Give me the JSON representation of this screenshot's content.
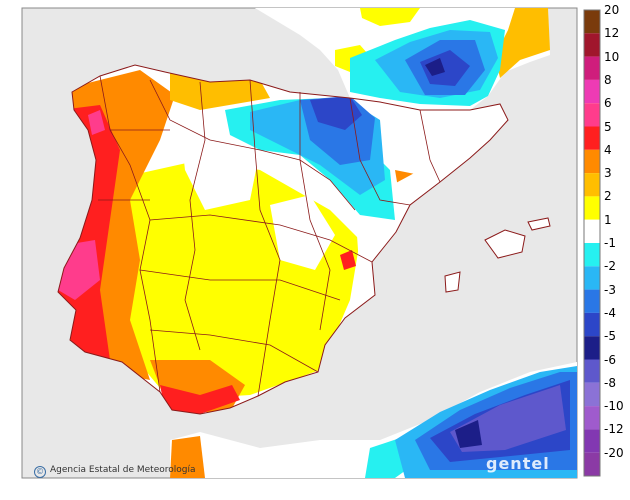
{
  "legend": {
    "bins": [
      {
        "label": "20",
        "color": "#7a3b0c"
      },
      {
        "label": "12",
        "color": "#a0162c"
      },
      {
        "label": "10",
        "color": "#cf1d7c"
      },
      {
        "label": "8",
        "color": "#ee3bb4"
      },
      {
        "label": "6",
        "color": "#ff3c8c"
      },
      {
        "label": "5",
        "color": "#ff1f1f"
      },
      {
        "label": "4",
        "color": "#ff8a00"
      },
      {
        "label": "3",
        "color": "#ffbe00"
      },
      {
        "label": "2",
        "color": "#ffff00"
      },
      {
        "label": "1",
        "color": "#ffffff"
      },
      {
        "label": "-1",
        "color": "#26f0f0"
      },
      {
        "label": "-2",
        "color": "#2ab7f5"
      },
      {
        "label": "-3",
        "color": "#2a77e6"
      },
      {
        "label": "-4",
        "color": "#2c46c8"
      },
      {
        "label": "-5",
        "color": "#1c1e88"
      },
      {
        "label": "-6",
        "color": "#5e58cc"
      },
      {
        "label": "-8",
        "color": "#8b72d6"
      },
      {
        "label": "-10",
        "color": "#9f5bcd"
      },
      {
        "label": "-12",
        "color": "#8238b2"
      },
      {
        "label": "-20",
        "color": "#8b3aa5"
      }
    ]
  },
  "credit": "Agencia Estatal de Meteorología",
  "watermark": "gentel",
  "colors": {
    "sea": "#e8e8e8",
    "land_base": "#ffffff",
    "border": "#8b1a1a"
  }
}
